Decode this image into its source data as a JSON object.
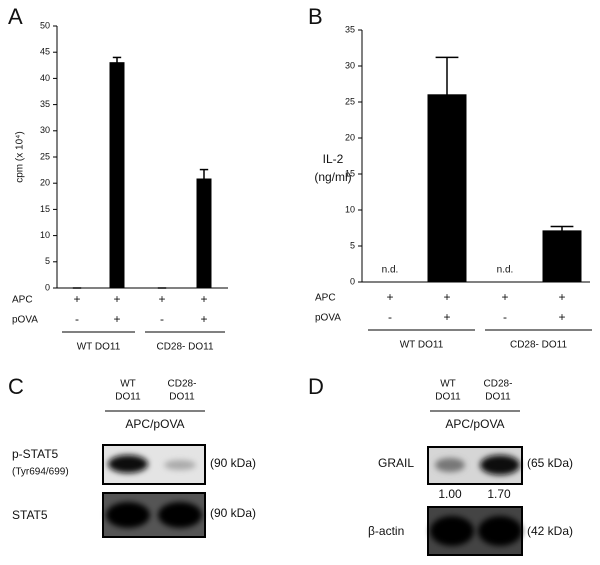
{
  "chart_data": [
    {
      "type": "bar",
      "panel": "A",
      "ylabel": "cpm (x 10⁴)",
      "categories": [
        null,
        null,
        null,
        null
      ],
      "values": [
        0,
        43,
        0,
        20.8
      ],
      "errors": [
        0,
        1,
        0,
        1.8
      ],
      "color": "#000000",
      "ylim": [
        0,
        50
      ],
      "yticks": [
        0,
        5,
        10,
        15,
        20,
        25,
        30,
        35,
        40,
        45,
        50
      ],
      "rows": [
        {
          "label": "APC",
          "values": [
            "+",
            "+",
            "+",
            "+"
          ]
        },
        {
          "label": "pOVA",
          "values": [
            "-",
            "+",
            "-",
            "+"
          ]
        }
      ],
      "groups": [
        "WT DO11",
        "CD28- DO11"
      ]
    },
    {
      "type": "bar",
      "panel": "B",
      "ylabel": [
        "IL-2",
        "(ng/ml)"
      ],
      "categories": [
        null,
        null,
        null,
        null
      ],
      "values": [
        null,
        26,
        null,
        7.1
      ],
      "errors": [
        null,
        5.2,
        null,
        0.6
      ],
      "value_labels": [
        "n.d.",
        null,
        "n.d.",
        null
      ],
      "color": "#000000",
      "ylim": [
        0,
        35
      ],
      "yticks": [
        0,
        5,
        10,
        15,
        20,
        25,
        30,
        35
      ],
      "rows": [
        {
          "label": "APC",
          "values": [
            "+",
            "+",
            "+",
            "+"
          ]
        },
        {
          "label": "pOVA",
          "values": [
            "-",
            "+",
            "-",
            "+"
          ]
        }
      ],
      "groups": [
        "WT DO11",
        "CD28- DO11"
      ]
    }
  ],
  "blots": [
    {
      "panel": "C",
      "columns": [
        [
          "WT",
          "DO11"
        ],
        [
          "CD28-",
          "DO11"
        ]
      ],
      "condition": "APC/pOVA",
      "rows": [
        {
          "label": "p-STAT5",
          "sublabel": "(Tyr694/699)",
          "size": "(90 kDa)"
        },
        {
          "label": "STAT5",
          "size": "(90 kDa)"
        }
      ]
    },
    {
      "panel": "D",
      "columns": [
        [
          "WT",
          "DO11"
        ],
        [
          "CD28-",
          "DO11"
        ]
      ],
      "condition": "APC/pOVA",
      "rows": [
        {
          "label": "GRAIL",
          "size": "(65 kDa)",
          "quantities": [
            "1.00",
            "1.70"
          ]
        },
        {
          "label": "β-actin",
          "size": "(42 kDa)"
        }
      ]
    }
  ]
}
